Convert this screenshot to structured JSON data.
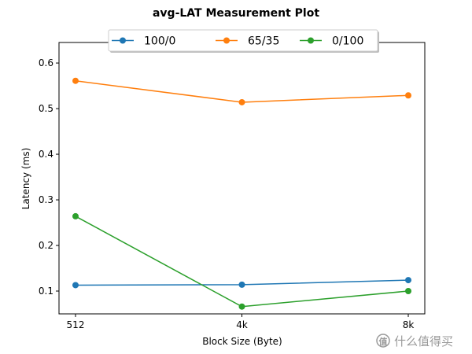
{
  "chart_data": {
    "type": "line",
    "title": "avg-LAT Measurement Plot",
    "xlabel": "Block Size (Byte)",
    "ylabel": "Latency (ms)",
    "categories": [
      "512",
      "4k",
      "8k"
    ],
    "ylim": [
      0.05,
      0.645
    ],
    "yticks": [
      "0.1",
      "0.2",
      "0.3",
      "0.4",
      "0.5",
      "0.6"
    ],
    "grid": false,
    "legend_position": "top-center",
    "series": [
      {
        "name": "100/0",
        "color": "#1f77b4",
        "values": [
          0.113,
          0.114,
          0.124
        ]
      },
      {
        "name": "65/35",
        "color": "#ff7f0e",
        "values": [
          0.561,
          0.514,
          0.529
        ]
      },
      {
        "name": "0/100",
        "color": "#2ca02c",
        "values": [
          0.264,
          0.066,
          0.1
        ]
      }
    ]
  },
  "watermark": {
    "text": "什么值得买",
    "icon": "smzdm-logo-icon"
  }
}
